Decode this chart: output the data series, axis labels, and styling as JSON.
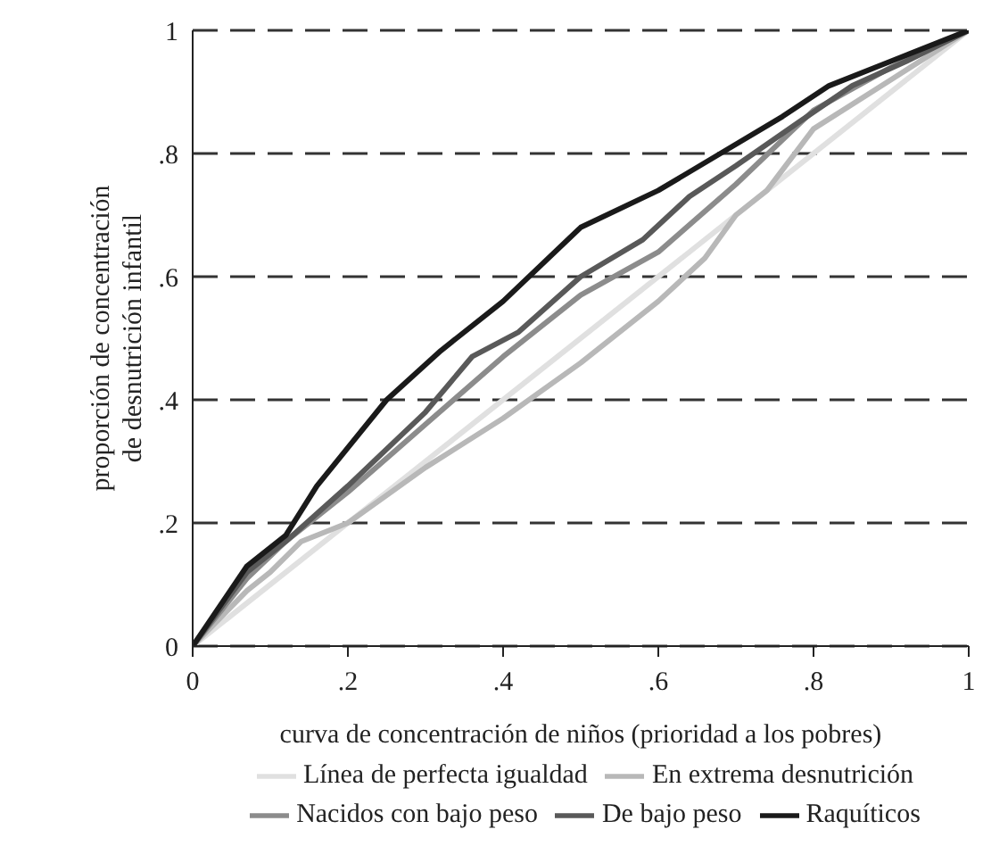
{
  "chart_data": {
    "type": "line",
    "xlabel": "curva de concentración de niños (prioridad a los pobres)",
    "ylabel": "proporción de concentración\nde desnutrición infantil",
    "xlim": [
      0,
      1
    ],
    "ylim": [
      0,
      1
    ],
    "xticks": [
      0,
      {
        "value": 0.2,
        "label": ".2"
      },
      {
        "value": 0.4,
        "label": ".4"
      },
      {
        "value": 0.6,
        "label": ".6"
      },
      {
        "value": 0.8,
        "label": ".8"
      },
      1
    ],
    "yticks": [
      0,
      {
        "value": 0.2,
        "label": ".2"
      },
      {
        "value": 0.4,
        "label": ".4"
      },
      {
        "value": 0.6,
        "label": ".6"
      },
      {
        "value": 0.8,
        "label": ".8"
      },
      1
    ],
    "grid": "y",
    "legend": "bottom",
    "marker": "none",
    "line_style": "solid",
    "series": [
      {
        "name": "Línea de perfecta igualdad",
        "color": "#e0e0e0",
        "x": [
          0,
          1
        ],
        "values": [
          0,
          1
        ]
      },
      {
        "name": "En extrema desnutrición",
        "color": "#b8b8b8",
        "x": [
          0,
          0.07,
          0.1,
          0.14,
          0.2,
          0.3,
          0.4,
          0.5,
          0.6,
          0.66,
          0.7,
          0.74,
          0.8,
          0.9,
          1
        ],
        "values": [
          0,
          0.09,
          0.12,
          0.17,
          0.2,
          0.29,
          0.37,
          0.46,
          0.56,
          0.63,
          0.7,
          0.74,
          0.84,
          0.92,
          1
        ]
      },
      {
        "name": "Nacidos con bajo peso",
        "color": "#8c8c8c",
        "x": [
          0,
          0.07,
          0.12,
          0.2,
          0.3,
          0.4,
          0.5,
          0.6,
          0.7,
          0.8,
          0.9,
          1
        ],
        "values": [
          0,
          0.11,
          0.17,
          0.25,
          0.36,
          0.47,
          0.57,
          0.64,
          0.75,
          0.87,
          0.94,
          1
        ]
      },
      {
        "name": "De bajo peso",
        "color": "#595959",
        "x": [
          0,
          0.07,
          0.12,
          0.2,
          0.3,
          0.36,
          0.42,
          0.5,
          0.58,
          0.64,
          0.7,
          0.78,
          0.85,
          0.92,
          1
        ],
        "values": [
          0,
          0.12,
          0.17,
          0.26,
          0.38,
          0.47,
          0.51,
          0.6,
          0.66,
          0.73,
          0.78,
          0.85,
          0.91,
          0.95,
          1
        ]
      },
      {
        "name": "Raquíticos",
        "color": "#1a1a1a",
        "x": [
          0,
          0.07,
          0.12,
          0.16,
          0.25,
          0.32,
          0.4,
          0.5,
          0.6,
          0.68,
          0.76,
          0.82,
          0.9,
          1
        ],
        "values": [
          0,
          0.13,
          0.18,
          0.26,
          0.4,
          0.48,
          0.56,
          0.68,
          0.74,
          0.8,
          0.86,
          0.91,
          0.95,
          1
        ]
      }
    ]
  }
}
